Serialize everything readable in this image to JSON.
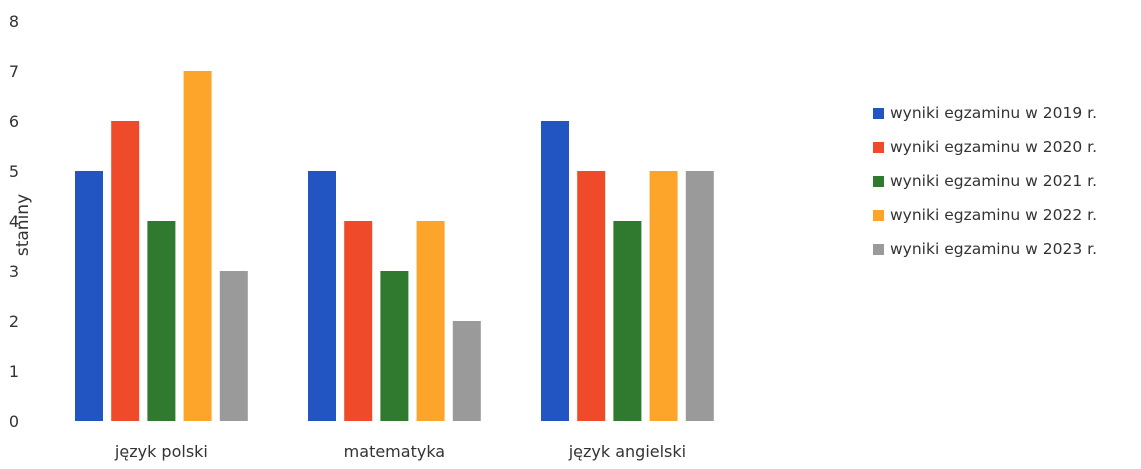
{
  "chart_data": {
    "type": "bar",
    "categories": [
      "język polski",
      "matematyka",
      "język angielski"
    ],
    "series": [
      {
        "name": "wyniki egzaminu w 2019 r.",
        "color": "#2255c2",
        "values": [
          5,
          5,
          6
        ]
      },
      {
        "name": "wyniki egzaminu w 2020 r.",
        "color": "#ef4a2a",
        "values": [
          6,
          4,
          5
        ]
      },
      {
        "name": "wyniki egzaminu w 2021 r.",
        "color": "#2f7a2f",
        "values": [
          4,
          3,
          4
        ]
      },
      {
        "name": "wyniki egzaminu w 2022 r.",
        "color": "#fda52a",
        "values": [
          7,
          4,
          5
        ]
      },
      {
        "name": "wyniki egzaminu w 2023 r.",
        "color": "#9a9a9a",
        "values": [
          3,
          2,
          5
        ]
      }
    ],
    "title": "",
    "xlabel": "",
    "ylabel": "staniny",
    "ylim": [
      0,
      8
    ],
    "yticks": [
      "0",
      "1",
      "2",
      "3",
      "4",
      "5",
      "6",
      "7",
      "8"
    ],
    "grid": false,
    "legend_position": "right"
  }
}
